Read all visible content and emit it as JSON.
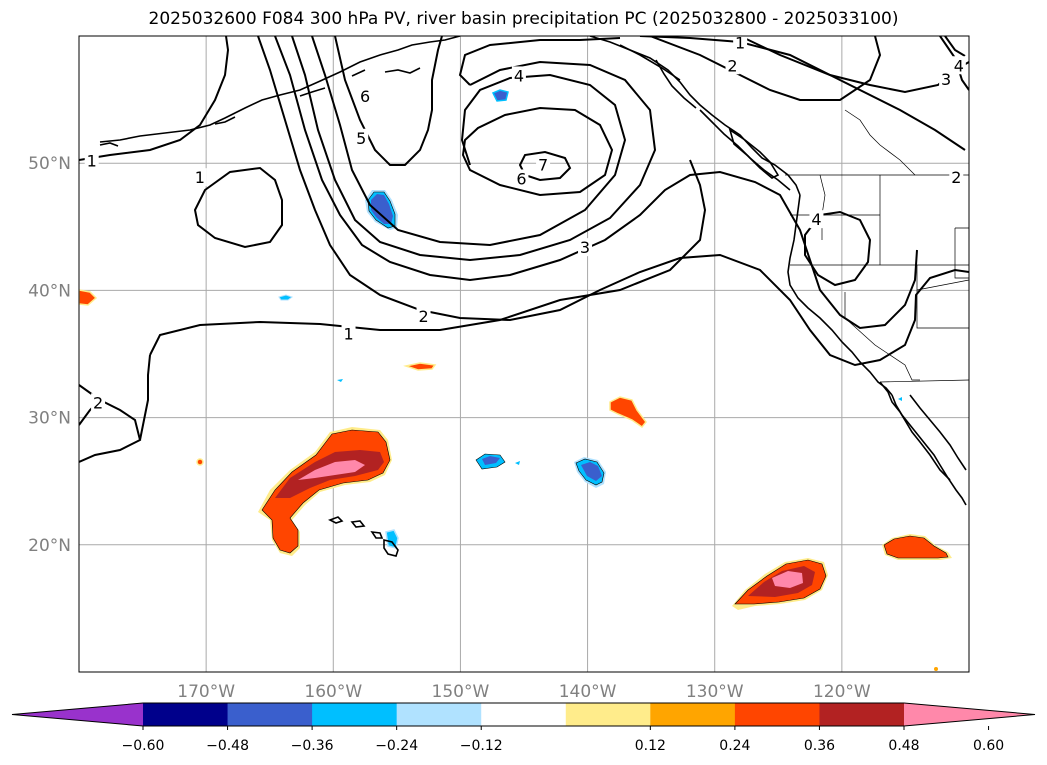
{
  "title": "2025032600 F084 300 hPa PV, river basin precipitation PC (2025032800 - 2025033100)",
  "map": {
    "lon_range": [
      -180,
      -110
    ],
    "lat_range": [
      10,
      60
    ],
    "lat_ticks": [
      {
        "value": 50,
        "label": "50°N"
      },
      {
        "value": 40,
        "label": "40°N"
      },
      {
        "value": 30,
        "label": "30°N"
      },
      {
        "value": 20,
        "label": "20°N"
      }
    ],
    "lon_ticks": [
      {
        "value": -170,
        "label": "170°W"
      },
      {
        "value": -160,
        "label": "160°W"
      },
      {
        "value": -150,
        "label": "150°W"
      },
      {
        "value": -140,
        "label": "140°W"
      },
      {
        "value": -130,
        "label": "130°W"
      },
      {
        "value": -120,
        "label": "120°W"
      }
    ],
    "gridlines": true,
    "pv_contour_labels": [
      {
        "text": "1",
        "lon": -179,
        "lat": 50.2
      },
      {
        "text": "1",
        "lon": -170.5,
        "lat": 48.9
      },
      {
        "text": "6",
        "lon": -157.5,
        "lat": 55.3
      },
      {
        "text": "5",
        "lon": -157.8,
        "lat": 52.0
      },
      {
        "text": "4",
        "lon": -145.4,
        "lat": 56.9
      },
      {
        "text": "6",
        "lon": -145.2,
        "lat": 48.8
      },
      {
        "text": "7",
        "lon": -143.5,
        "lat": 49.9
      },
      {
        "text": "3",
        "lon": -140.2,
        "lat": 43.4
      },
      {
        "text": "2",
        "lon": -152.9,
        "lat": 38.0
      },
      {
        "text": "1",
        "lon": -158.8,
        "lat": 36.6
      },
      {
        "text": "1",
        "lon": -128.0,
        "lat": 59.5
      },
      {
        "text": "2",
        "lon": -128.6,
        "lat": 57.7
      },
      {
        "text": "4",
        "lon": -122.0,
        "lat": 45.6
      },
      {
        "text": "4",
        "lon": -110.8,
        "lat": 57.7
      },
      {
        "text": "3",
        "lon": -111.8,
        "lat": 56.6
      },
      {
        "text": "2",
        "lon": -111.0,
        "lat": 48.9
      },
      {
        "text": "2",
        "lon": -178.5,
        "lat": 31.2
      }
    ]
  },
  "colorbar": {
    "ticks": [
      "−0.60",
      "−0.48",
      "−0.36",
      "−0.24",
      "−0.12",
      "0.12",
      "0.24",
      "0.36",
      "0.48",
      "0.60"
    ],
    "colors": [
      "#9932cc",
      "#00008b",
      "#3a5fcd",
      "#00bfff",
      "#b0e2ff",
      "#ffffff",
      "#ffec8b",
      "#ffa500",
      "#ff4500",
      "#b22222",
      "#ff88aa"
    ],
    "extend": "both"
  }
}
